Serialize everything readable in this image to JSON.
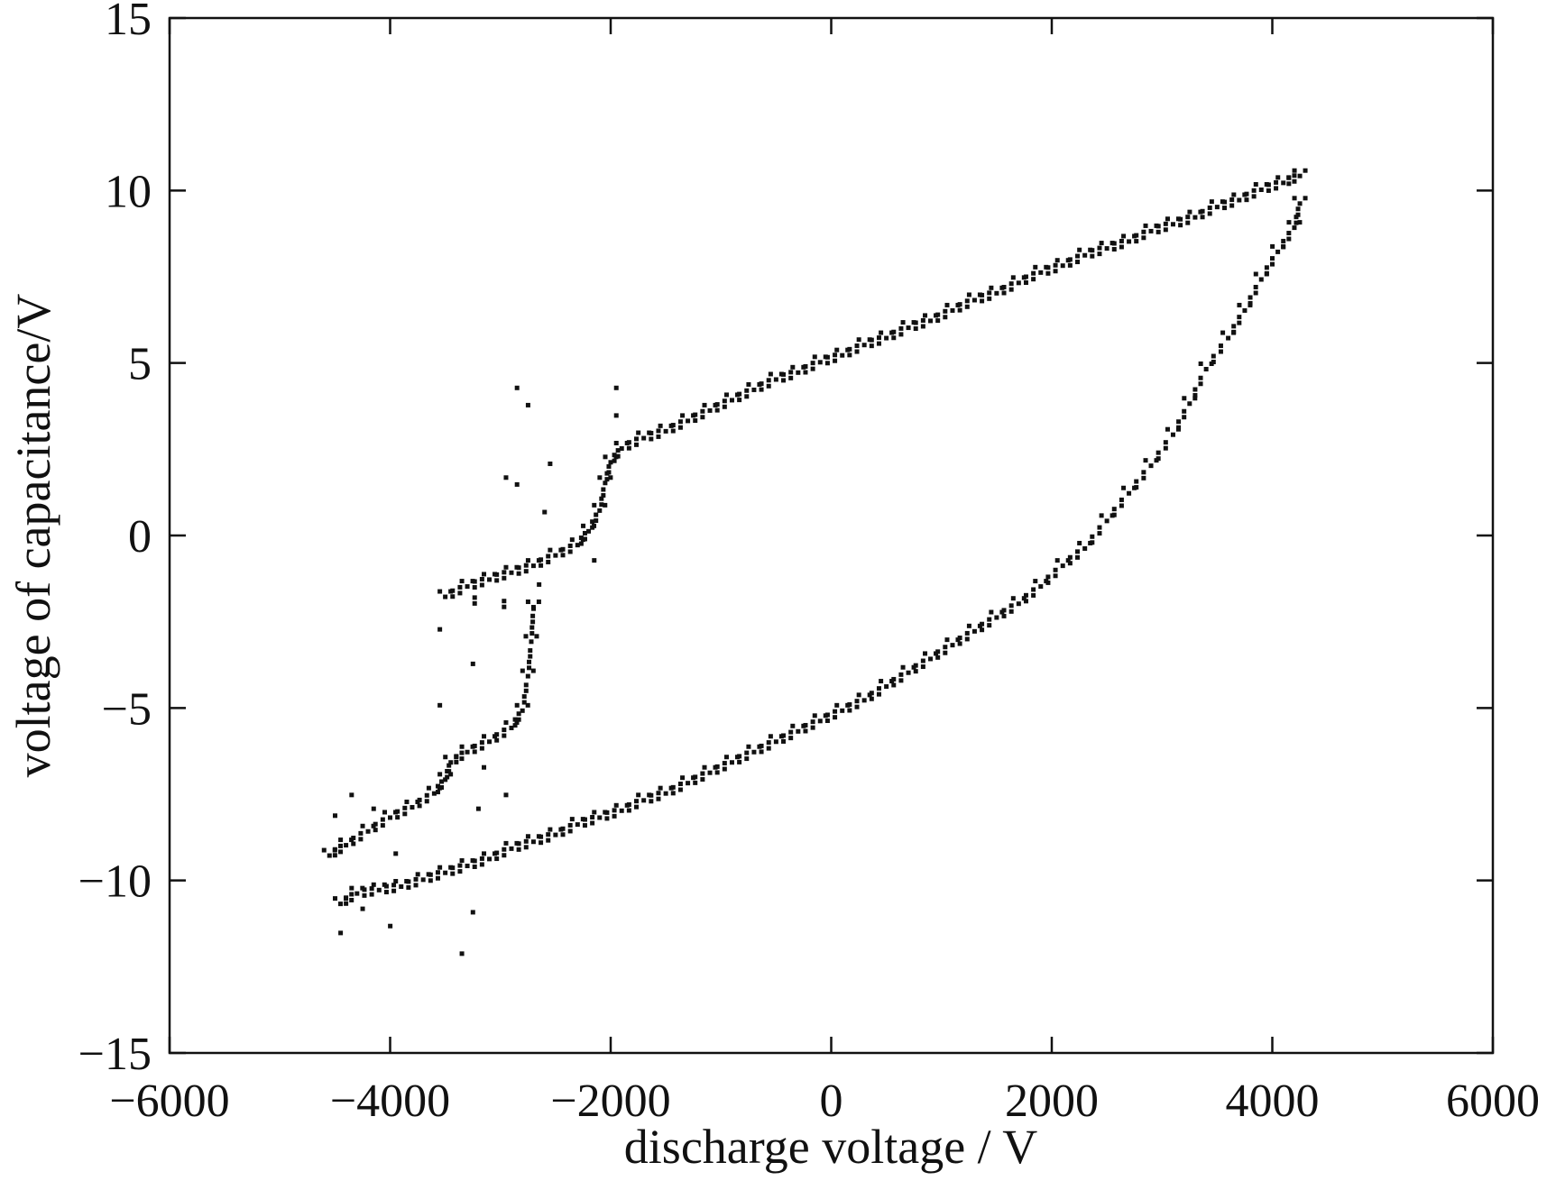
{
  "chart_data": {
    "type": "scatter",
    "title": "",
    "xlabel": "discharge voltage / V",
    "ylabel": "voltage of capacitance/V",
    "xlim": [
      -6000,
      6000
    ],
    "ylim": [
      -15,
      15
    ],
    "xticks": [
      -6000,
      -4000,
      -2000,
      0,
      2000,
      4000,
      6000
    ],
    "yticks": [
      -15,
      -10,
      -5,
      0,
      5,
      10,
      15
    ],
    "xtick_labels": [
      "−6000",
      "−4000",
      "−2000",
      "0",
      "2000",
      "4000",
      "6000"
    ],
    "ytick_labels": [
      "−15",
      "−10",
      "−5",
      "0",
      "5",
      "10",
      "15"
    ],
    "grid": false,
    "legend": "none",
    "marker_color": "#111111",
    "series": [
      {
        "description": "upper branch",
        "points": [
          [
            -4550,
            -9.2
          ],
          [
            -4400,
            -8.9
          ],
          [
            -4200,
            -8.5
          ],
          [
            -4000,
            -8.1
          ],
          [
            -3800,
            -7.8
          ],
          [
            -3600,
            -7.4
          ],
          [
            -3500,
            -7.0
          ],
          [
            -3450,
            -6.5
          ],
          [
            -3300,
            -6.2
          ],
          [
            -3100,
            -5.9
          ],
          [
            -2900,
            -5.5
          ],
          [
            -2800,
            -5.0
          ],
          [
            -2750,
            -4.0
          ],
          [
            -2720,
            -3.0
          ],
          [
            -2700,
            -2.0
          ],
          [
            -3500,
            -1.7
          ],
          [
            -3300,
            -1.4
          ],
          [
            -3100,
            -1.2
          ],
          [
            -2900,
            -1.0
          ],
          [
            -2700,
            -0.8
          ],
          [
            -2500,
            -0.5
          ],
          [
            -2300,
            -0.2
          ],
          [
            -2200,
            0.2
          ],
          [
            -2100,
            0.8
          ],
          [
            -2050,
            1.6
          ],
          [
            -2000,
            2.2
          ],
          [
            -1900,
            2.6
          ],
          [
            -1700,
            2.9
          ],
          [
            -1500,
            3.1
          ],
          [
            -1300,
            3.4
          ],
          [
            -1100,
            3.7
          ],
          [
            -900,
            4.0
          ],
          [
            -700,
            4.3
          ],
          [
            -500,
            4.6
          ],
          [
            -300,
            4.8
          ],
          [
            -100,
            5.1
          ],
          [
            100,
            5.3
          ],
          [
            300,
            5.6
          ],
          [
            500,
            5.8
          ],
          [
            700,
            6.1
          ],
          [
            900,
            6.3
          ],
          [
            1100,
            6.6
          ],
          [
            1300,
            6.9
          ],
          [
            1500,
            7.1
          ],
          [
            1700,
            7.4
          ],
          [
            1900,
            7.7
          ],
          [
            2100,
            7.9
          ],
          [
            2300,
            8.2
          ],
          [
            2500,
            8.4
          ],
          [
            2700,
            8.6
          ],
          [
            2900,
            8.9
          ],
          [
            3100,
            9.1
          ],
          [
            3300,
            9.3
          ],
          [
            3500,
            9.6
          ],
          [
            3700,
            9.8
          ],
          [
            3900,
            10.1
          ],
          [
            4100,
            10.3
          ],
          [
            4250,
            10.5
          ]
        ]
      },
      {
        "description": "lower branch",
        "points": [
          [
            4250,
            9.7
          ],
          [
            4200,
            9.0
          ],
          [
            4050,
            8.3
          ],
          [
            3900,
            7.5
          ],
          [
            3750,
            6.6
          ],
          [
            3600,
            5.8
          ],
          [
            3400,
            4.9
          ],
          [
            3250,
            3.9
          ],
          [
            3100,
            3.0
          ],
          [
            2900,
            2.1
          ],
          [
            2700,
            1.3
          ],
          [
            2500,
            0.5
          ],
          [
            2300,
            -0.3
          ],
          [
            2100,
            -0.8
          ],
          [
            1900,
            -1.4
          ],
          [
            1700,
            -1.9
          ],
          [
            1500,
            -2.3
          ],
          [
            1300,
            -2.7
          ],
          [
            1100,
            -3.1
          ],
          [
            900,
            -3.5
          ],
          [
            700,
            -3.9
          ],
          [
            500,
            -4.3
          ],
          [
            300,
            -4.7
          ],
          [
            100,
            -5.0
          ],
          [
            -100,
            -5.3
          ],
          [
            -300,
            -5.6
          ],
          [
            -500,
            -5.9
          ],
          [
            -700,
            -6.2
          ],
          [
            -900,
            -6.5
          ],
          [
            -1100,
            -6.8
          ],
          [
            -1300,
            -7.1
          ],
          [
            -1500,
            -7.4
          ],
          [
            -1700,
            -7.6
          ],
          [
            -1900,
            -7.9
          ],
          [
            -2100,
            -8.1
          ],
          [
            -2300,
            -8.3
          ],
          [
            -2500,
            -8.6
          ],
          [
            -2700,
            -8.8
          ],
          [
            -2900,
            -9.0
          ],
          [
            -3100,
            -9.3
          ],
          [
            -3300,
            -9.5
          ],
          [
            -3500,
            -9.7
          ],
          [
            -3700,
            -9.9
          ],
          [
            -3900,
            -10.1
          ],
          [
            -4100,
            -10.2
          ],
          [
            -4300,
            -10.3
          ],
          [
            -4450,
            -10.6
          ]
        ]
      },
      {
        "description": "scattered outliers",
        "points": [
          [
            -2800,
            4.2
          ],
          [
            -2700,
            3.7
          ],
          [
            -2500,
            2.0
          ],
          [
            -1900,
            4.2
          ],
          [
            -1900,
            3.4
          ],
          [
            -2900,
            1.6
          ],
          [
            -2800,
            1.4
          ],
          [
            -2550,
            0.6
          ],
          [
            -2100,
            -0.8
          ],
          [
            -3500,
            -2.8
          ],
          [
            -3200,
            -3.8
          ],
          [
            -3500,
            -5.0
          ],
          [
            -3100,
            -6.8
          ],
          [
            -2900,
            -7.6
          ],
          [
            -3150,
            -8.0
          ],
          [
            -3200,
            -11.0
          ],
          [
            -3300,
            -12.2
          ],
          [
            -4400,
            -11.6
          ],
          [
            -4200,
            -10.9
          ],
          [
            -3950,
            -11.4
          ],
          [
            -4450,
            -8.2
          ],
          [
            -4300,
            -7.6
          ],
          [
            -4100,
            -8.0
          ],
          [
            -3900,
            -9.3
          ],
          [
            -2600,
            -1.5
          ],
          [
            -2650,
            -2.2
          ]
        ]
      }
    ]
  }
}
